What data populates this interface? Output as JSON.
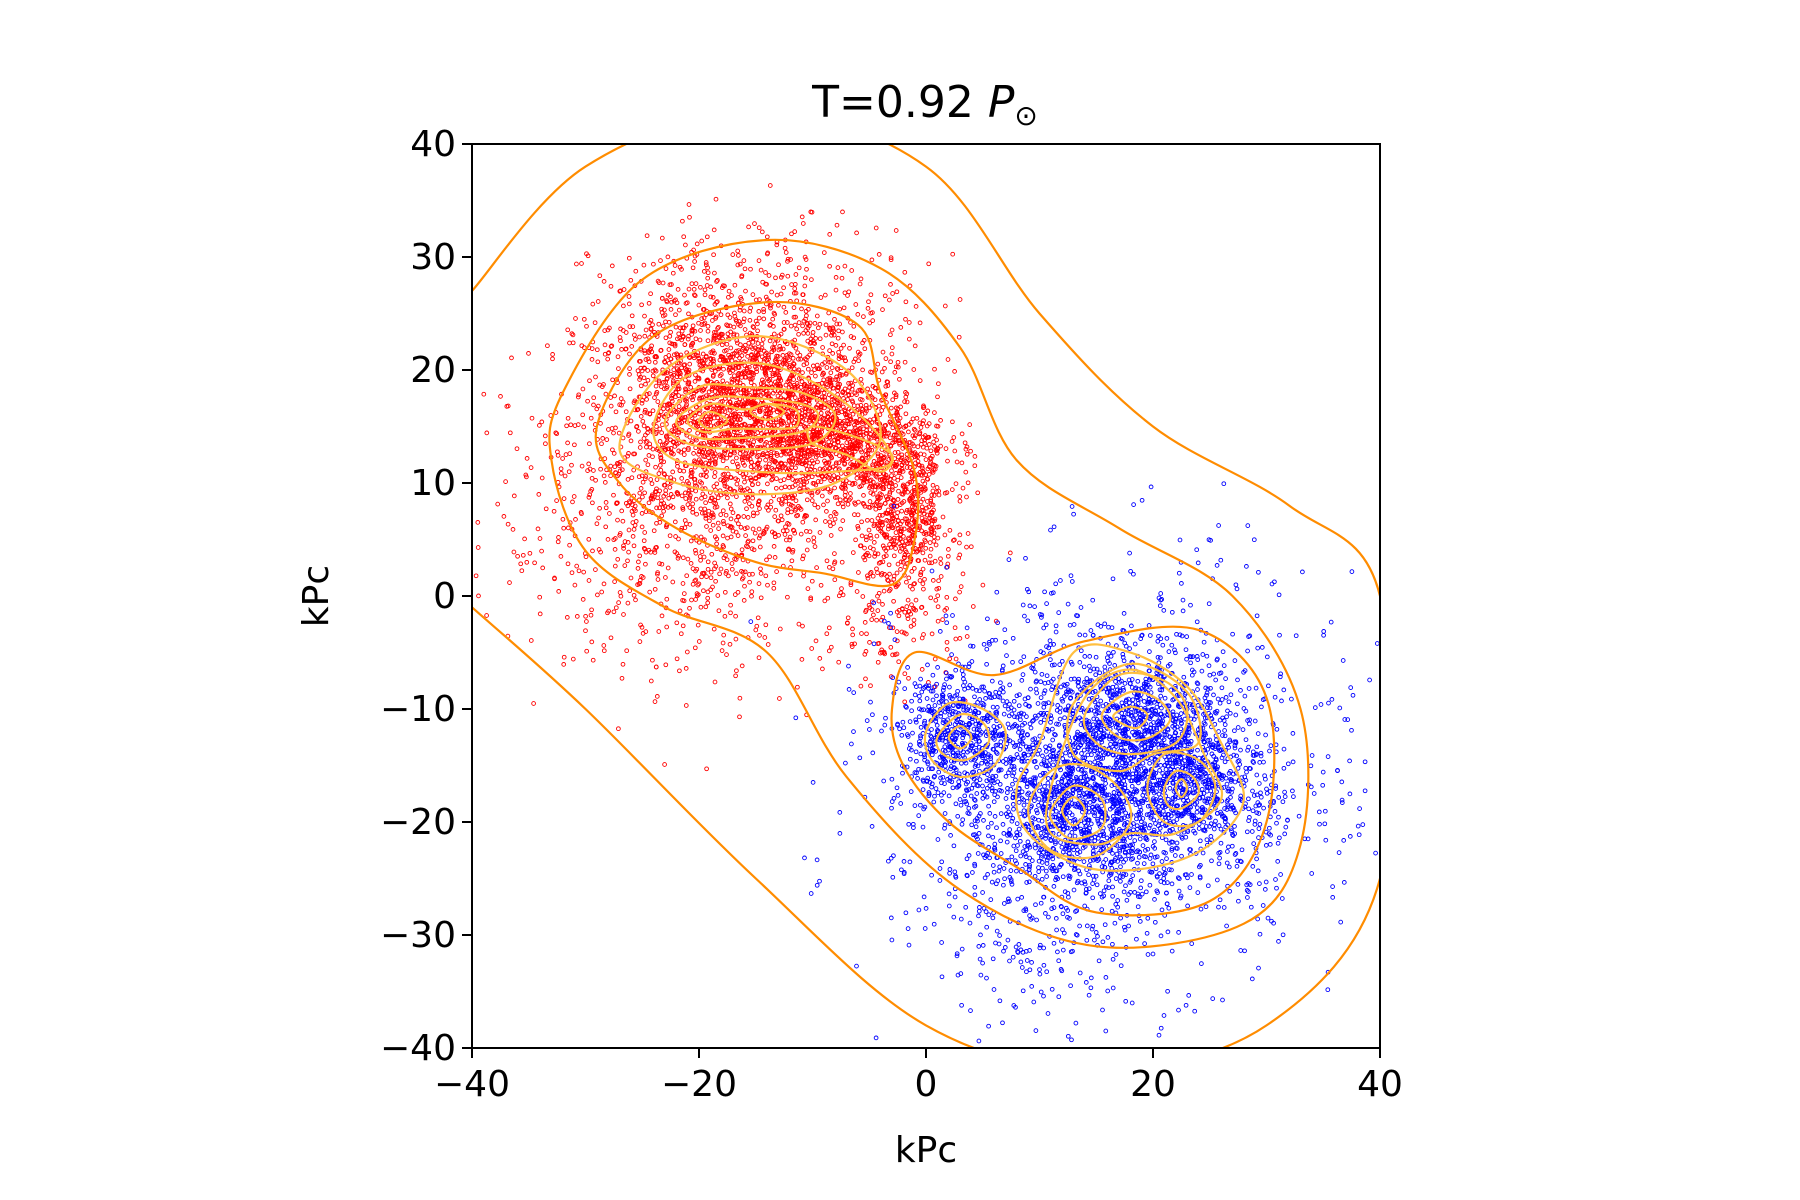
{
  "chart_data": {
    "type": "scatter",
    "title": {
      "prefix": "T=0.92 ",
      "symbol": "P",
      "subscript": "⊙"
    },
    "xlabel": "kPc",
    "ylabel": "kPc",
    "xlim": [
      -40,
      40
    ],
    "ylim": [
      -40,
      40
    ],
    "xticks": [
      -40,
      -20,
      0,
      20,
      40
    ],
    "yticks": [
      -40,
      -30,
      -20,
      -10,
      0,
      10,
      20,
      30,
      40
    ],
    "xtick_labels": [
      "−40",
      "−20",
      "0",
      "20",
      "40"
    ],
    "ytick_labels": [
      "−40",
      "−30",
      "−20",
      "−10",
      "0",
      "10",
      "20",
      "30",
      "40"
    ],
    "grid": false,
    "legend": "none",
    "series": [
      {
        "color": "#ff0000",
        "marker": "open-circle",
        "clusters": [
          {
            "cx": -18,
            "cy": 15.5,
            "sx": 6.5,
            "sy": 5.5,
            "n": 1400
          },
          {
            "cx": -13,
            "cy": 16.5,
            "sx": 5,
            "sy": 3.5,
            "n": 900
          },
          {
            "cx": -6,
            "cy": 13,
            "sx": 4,
            "sy": 2.5,
            "n": 600
          },
          {
            "cx": -2,
            "cy": 7,
            "sx": 2.2,
            "sy": 3.5,
            "n": 500
          },
          {
            "cx": -15,
            "cy": 24,
            "sx": 7,
            "sy": 4.5,
            "n": 500
          },
          {
            "cx": -20,
            "cy": 5,
            "sx": 9,
            "sy": 6,
            "n": 700
          },
          {
            "cx": -2,
            "cy": -2,
            "sx": 3,
            "sy": 3,
            "n": 120
          }
        ]
      },
      {
        "color": "#0000ff",
        "marker": "open-circle",
        "clusters": [
          {
            "cx": 3,
            "cy": -12.5,
            "sx": 2.6,
            "sy": 2.6,
            "n": 500
          },
          {
            "cx": 18,
            "cy": -11,
            "sx": 4,
            "sy": 3.2,
            "n": 700
          },
          {
            "cx": 13,
            "cy": -19,
            "sx": 3.2,
            "sy": 3.2,
            "n": 600
          },
          {
            "cx": 22.5,
            "cy": -17,
            "sx": 3,
            "sy": 3,
            "n": 500
          },
          {
            "cx": 15,
            "cy": -17,
            "sx": 9,
            "sy": 7,
            "n": 1200
          },
          {
            "cx": 18,
            "cy": -15,
            "sx": 10,
            "sy": 9,
            "n": 700
          },
          {
            "cx": 10,
            "cy": -30,
            "sx": 4,
            "sy": 4,
            "n": 120
          }
        ]
      }
    ],
    "contours": {
      "color": "#ff8c00",
      "inner_color": "#ffbf40",
      "levels": [
        {
          "points": [
            [
              -40,
              27
            ],
            [
              -30,
              38
            ],
            [
              -15,
              43
            ],
            [
              0,
              38
            ],
            [
              10,
              25
            ],
            [
              20,
              15
            ],
            [
              32,
              8
            ],
            [
              40,
              0
            ],
            [
              40,
              -25
            ],
            [
              30,
              -38
            ],
            [
              15,
              -42
            ],
            [
              0,
              -38
            ],
            [
              -15,
              -25
            ],
            [
              -30,
              -10
            ],
            [
              -40,
              -1
            ]
          ],
          "closed": false
        },
        {
          "points": [
            [
              -32,
              18
            ],
            [
              -25,
              28
            ],
            [
              -14,
              31.5
            ],
            [
              -4,
              29
            ],
            [
              3,
              22
            ],
            [
              8,
              12
            ],
            [
              17,
              6
            ],
            [
              27,
              0
            ],
            [
              33,
              -10
            ],
            [
              33,
              -22
            ],
            [
              28,
              -29
            ],
            [
              15,
              -31
            ],
            [
              3,
              -26
            ],
            [
              -7,
              -16
            ],
            [
              -14,
              -5
            ],
            [
              -23,
              -1
            ],
            [
              -30,
              4
            ],
            [
              -33,
              12
            ]
          ],
          "closed": true
        },
        {
          "points": [
            [
              -29,
              15
            ],
            [
              -24,
              23
            ],
            [
              -14,
              26
            ],
            [
              -6,
              24
            ],
            [
              -4,
              18
            ],
            [
              -1,
              11
            ],
            [
              -1,
              5
            ],
            [
              -3,
              1
            ],
            [
              -9,
              2
            ],
            [
              -15,
              3
            ],
            [
              -22,
              6
            ],
            [
              -27,
              10
            ]
          ],
          "closed": true
        },
        {
          "points": [
            [
              -3,
              -10
            ],
            [
              -1,
              -5
            ],
            [
              6,
              -7
            ],
            [
              14,
              -4
            ],
            [
              24,
              -3
            ],
            [
              30,
              -9
            ],
            [
              30,
              -20
            ],
            [
              25,
              -27
            ],
            [
              15,
              -28
            ],
            [
              8,
              -24
            ],
            [
              2,
              -20
            ],
            [
              -2,
              -15
            ]
          ],
          "closed": true
        },
        {
          "points": [
            [
              -27,
              13
            ],
            [
              -23,
              20
            ],
            [
              -15,
              23
            ],
            [
              -7,
              20
            ],
            [
              -4,
              14
            ],
            [
              -8,
              10
            ],
            [
              -15,
              9
            ],
            [
              -22,
              10
            ]
          ],
          "closed": true
        },
        {
          "points": [
            [
              -24,
              15
            ],
            [
              -21,
              19.5
            ],
            [
              -14,
              20.5
            ],
            [
              -7,
              17
            ],
            [
              -3,
              12
            ],
            [
              -8,
              11
            ],
            [
              -15,
              11
            ],
            [
              -22,
              12
            ]
          ],
          "closed": true
        },
        {
          "points": [
            [
              -23,
              15.5
            ],
            [
              -20,
              18.5
            ],
            [
              -16,
              18.5
            ],
            [
              -11,
              18
            ],
            [
              -8,
              16
            ],
            [
              -10,
              13.5
            ],
            [
              -16,
              13
            ],
            [
              -21,
              13.5
            ]
          ],
          "closed": true
        },
        {
          "points": [
            [
              -22,
              15.5
            ],
            [
              -19,
              17.5
            ],
            [
              -15,
              17.5
            ],
            [
              -11,
              17
            ],
            [
              -9.5,
              16
            ],
            [
              -11,
              14.5
            ],
            [
              -16,
              14
            ],
            [
              -20,
              14
            ]
          ],
          "closed": true
        },
        {
          "points": [
            [
              -21,
              15.5
            ],
            [
              -19,
              17
            ],
            [
              -16,
              16.5
            ],
            [
              -14,
              17
            ],
            [
              -11.5,
              16.5
            ],
            [
              -11.5,
              15
            ],
            [
              -14,
              14.8
            ],
            [
              -17,
              14.8
            ],
            [
              -19.5,
              14.5
            ]
          ],
          "closed": true
        },
        {
          "points": [
            [
              -20,
              15.5
            ],
            [
              -19,
              16.3
            ],
            [
              -17.5,
              15.5
            ],
            [
              -19,
              14.8
            ]
          ],
          "closed": true
        },
        {
          "points": [
            [
              -15.5,
              16.3
            ],
            [
              -14,
              17
            ],
            [
              -12.5,
              16.3
            ],
            [
              -14,
              15.6
            ]
          ],
          "closed": true
        },
        {
          "points": [
            [
              -10,
              15
            ],
            [
              -6,
              14
            ],
            [
              -3,
              12.5
            ],
            [
              -4,
              11
            ],
            [
              -7,
              12.5
            ],
            [
              -10,
              13.5
            ]
          ],
          "closed": true
        },
        {
          "points": [
            [
              0,
              -12
            ],
            [
              2,
              -9.5
            ],
            [
              5,
              -10
            ],
            [
              7,
              -12
            ],
            [
              6,
              -15
            ],
            [
              3,
              -16
            ],
            [
              0.5,
              -14.5
            ]
          ],
          "closed": true
        },
        {
          "points": [
            [
              1,
              -12.5
            ],
            [
              3,
              -10.5
            ],
            [
              5,
              -11.2
            ],
            [
              5.5,
              -13
            ],
            [
              3.5,
              -14.5
            ],
            [
              1.5,
              -14
            ]
          ],
          "closed": true
        },
        {
          "points": [
            [
              2,
              -12.5
            ],
            [
              3,
              -11.5
            ],
            [
              4,
              -12.5
            ],
            [
              3,
              -13.5
            ]
          ],
          "closed": true
        },
        {
          "points": [
            [
              9,
              -19
            ],
            [
              11,
              -15.5
            ],
            [
              14,
              -15
            ],
            [
              17,
              -17
            ],
            [
              18,
              -20
            ],
            [
              15,
              -23
            ],
            [
              11,
              -22.5
            ]
          ],
          "closed": true
        },
        {
          "points": [
            [
              11,
              -19
            ],
            [
              13,
              -16.8
            ],
            [
              15.5,
              -18
            ],
            [
              15.5,
              -20.5
            ],
            [
              13,
              -21.5
            ],
            [
              11.5,
              -20.5
            ]
          ],
          "closed": true
        },
        {
          "points": [
            [
              12,
              -19
            ],
            [
              13,
              -17.8
            ],
            [
              14,
              -19
            ],
            [
              13,
              -20.3
            ]
          ],
          "closed": true
        },
        {
          "points": [
            [
              14,
              -10.5
            ],
            [
              17,
              -7
            ],
            [
              21,
              -7.5
            ],
            [
              23,
              -10
            ],
            [
              22,
              -13
            ],
            [
              18,
              -14
            ],
            [
              15,
              -13
            ]
          ],
          "closed": true
        },
        {
          "points": [
            [
              15.5,
              -10.5
            ],
            [
              18,
              -8.5
            ],
            [
              20.5,
              -9.2
            ],
            [
              21.5,
              -11
            ],
            [
              19.5,
              -12.6
            ],
            [
              17,
              -12.5
            ]
          ],
          "closed": true
        },
        {
          "points": [
            [
              16.5,
              -10.7
            ],
            [
              18,
              -9.8
            ],
            [
              19.5,
              -10.5
            ],
            [
              18.5,
              -11.7
            ]
          ],
          "closed": true
        },
        {
          "points": [
            [
              19.5,
              -17
            ],
            [
              21,
              -14
            ],
            [
              24,
              -14.5
            ],
            [
              25.5,
              -17
            ],
            [
              24,
              -20
            ],
            [
              21,
              -20
            ]
          ],
          "closed": true
        },
        {
          "points": [
            [
              21,
              -17
            ],
            [
              22,
              -15.5
            ],
            [
              23.5,
              -16
            ],
            [
              24,
              -17.5
            ],
            [
              22.5,
              -18.8
            ],
            [
              21.3,
              -18.5
            ]
          ],
          "closed": true
        },
        {
          "points": [
            [
              22,
              -17
            ],
            [
              22.5,
              -16.2
            ],
            [
              23,
              -17
            ],
            [
              22.5,
              -17.8
            ]
          ],
          "closed": true
        },
        {
          "points": [
            [
              10,
              -13
            ],
            [
              13,
              -5
            ],
            [
              18,
              -5
            ],
            [
              23,
              -8
            ],
            [
              26,
              -13
            ],
            [
              28,
              -18
            ],
            [
              25,
              -22
            ],
            [
              20,
              -24
            ],
            [
              14,
              -24
            ],
            [
              9,
              -21
            ],
            [
              8,
              -17
            ]
          ],
          "closed": true
        },
        {
          "points": [
            [
              11,
              -17
            ],
            [
              14,
              -9
            ],
            [
              18,
              -6.5
            ],
            [
              22,
              -9
            ],
            [
              24.5,
              -14
            ],
            [
              26,
              -18
            ],
            [
              22,
              -21
            ],
            [
              18,
              -21
            ],
            [
              15,
              -22
            ],
            [
              11,
              -21
            ]
          ],
          "closed": true
        },
        {
          "points": [
            [
              13,
              -9.5
            ],
            [
              18,
              -6
            ],
            [
              23,
              -8.5
            ],
            [
              24,
              -13
            ],
            [
              20,
              -14
            ],
            [
              17,
              -15.5
            ],
            [
              13,
              -14
            ]
          ],
          "closed": true
        }
      ]
    }
  }
}
